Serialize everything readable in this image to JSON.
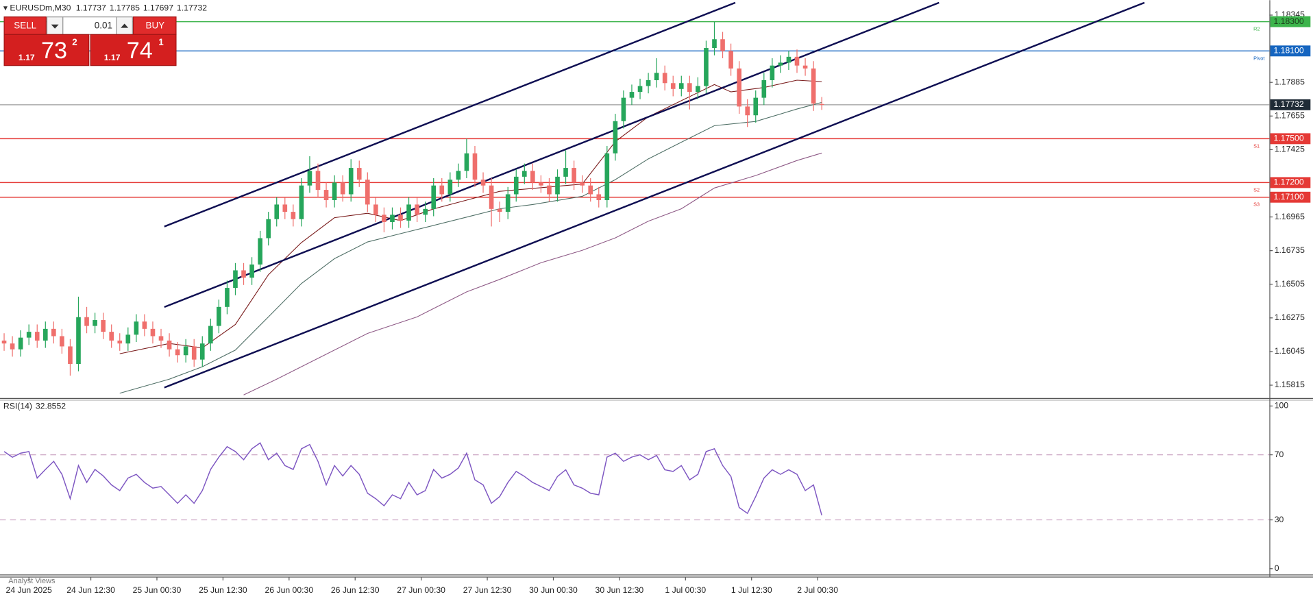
{
  "chart_data": {
    "type": "candlestick",
    "symbol": "EURUSDm,M30",
    "up_color": "#26a65b",
    "down_color": "#ef6f6c",
    "xlim": [
      -0.5,
      153.2
    ],
    "xticks": [
      {
        "value": 3,
        "label": "24 Jun 2025"
      },
      {
        "value": 10.5,
        "label": "24 Jun 12:30"
      },
      {
        "value": 18.5,
        "label": "25 Jun 00:30"
      },
      {
        "value": 26.5,
        "label": "25 Jun 12:30"
      },
      {
        "value": 34.5,
        "label": "26 Jun 00:30"
      },
      {
        "value": 42.5,
        "label": "26 Jun 12:30"
      },
      {
        "value": 50.5,
        "label": "27 Jun 00:30"
      },
      {
        "value": 58.5,
        "label": "27 Jun 12:30"
      },
      {
        "value": 66.5,
        "label": "30 Jun 00:30"
      },
      {
        "value": 74.5,
        "label": "30 Jun 12:30"
      },
      {
        "value": 82.5,
        "label": "1 Jul 00:30"
      },
      {
        "value": 90.5,
        "label": "1 Jul 12:30"
      },
      {
        "value": 98.5,
        "label": "2 Jul 00:30"
      }
    ],
    "ylim": [
      1.1573,
      1.1843
    ],
    "yticks": [
      1.18345,
      1.17885,
      1.17655,
      1.17425,
      1.16965,
      1.16735,
      1.16505,
      1.16275,
      1.16045,
      1.15815
    ],
    "open": [
      1.1612,
      1.161,
      1.1606,
      1.1614,
      1.1618,
      1.1612,
      1.162,
      1.1615,
      1.1608,
      1.1596,
      1.1628,
      1.1622,
      1.1626,
      1.1618,
      1.1612,
      1.161,
      1.1616,
      1.1625,
      1.162,
      1.1615,
      1.1612,
      1.1606,
      1.1602,
      1.1608,
      1.1599,
      1.161,
      1.1622,
      1.1635,
      1.1648,
      1.166,
      1.1655,
      1.1664,
      1.1682,
      1.1695,
      1.1705,
      1.17,
      1.1695,
      1.1718,
      1.1728,
      1.1715,
      1.1708,
      1.172,
      1.1712,
      1.173,
      1.1722,
      1.1705,
      1.1698,
      1.1693,
      1.1698,
      1.1694,
      1.1705,
      1.1698,
      1.1702,
      1.1718,
      1.1712,
      1.1722,
      1.1728,
      1.174,
      1.1722,
      1.1718,
      1.1702,
      1.17,
      1.1712,
      1.1724,
      1.1728,
      1.172,
      1.1718,
      1.1712,
      1.1724,
      1.173,
      1.172,
      1.1718,
      1.1712,
      1.1708,
      1.174,
      1.1762,
      1.1778,
      1.1782,
      1.1786,
      1.179,
      1.1795,
      1.1788,
      1.1784,
      1.1788,
      1.1782,
      1.1786,
      1.1812,
      1.1818,
      1.181,
      1.1798,
      1.1772,
      1.1766,
      1.1778,
      1.179,
      1.18,
      1.1802,
      1.1806,
      1.18,
      1.1798,
      1.17737
    ],
    "high": [
      1.1617,
      1.1615,
      1.1619,
      1.1623,
      1.1623,
      1.1625,
      1.1625,
      1.162,
      1.1613,
      1.1642,
      1.1635,
      1.1631,
      1.1631,
      1.1623,
      1.1617,
      1.1621,
      1.163,
      1.163,
      1.1625,
      1.162,
      1.1617,
      1.1611,
      1.1613,
      1.1613,
      1.1615,
      1.1627,
      1.164,
      1.1653,
      1.1665,
      1.1665,
      1.1669,
      1.1687,
      1.17,
      1.171,
      1.171,
      1.1705,
      1.1723,
      1.1738,
      1.1733,
      1.172,
      1.1725,
      1.1725,
      1.1736,
      1.1735,
      1.1727,
      1.171,
      1.1703,
      1.1703,
      1.1703,
      1.171,
      1.171,
      1.1707,
      1.1723,
      1.1723,
      1.1727,
      1.1733,
      1.175,
      1.1745,
      1.1727,
      1.1723,
      1.1707,
      1.1717,
      1.1729,
      1.1733,
      1.1733,
      1.1725,
      1.1723,
      1.1729,
      1.1742,
      1.1735,
      1.1725,
      1.1723,
      1.1717,
      1.1745,
      1.1767,
      1.1783,
      1.1787,
      1.1791,
      1.1795,
      1.1805,
      1.18,
      1.1793,
      1.1793,
      1.1793,
      1.1792,
      1.1817,
      1.183,
      1.1823,
      1.1815,
      1.1803,
      1.1777,
      1.1783,
      1.1795,
      1.1805,
      1.1807,
      1.181,
      1.1811,
      1.1805,
      1.1803,
      1.17785
    ],
    "low": [
      1.1605,
      1.1601,
      1.1601,
      1.1609,
      1.1607,
      1.1607,
      1.161,
      1.1603,
      1.1588,
      1.1591,
      1.1617,
      1.1617,
      1.1613,
      1.1607,
      1.1605,
      1.1605,
      1.1611,
      1.1615,
      1.161,
      1.1607,
      1.1601,
      1.1597,
      1.1597,
      1.1594,
      1.1594,
      1.1605,
      1.1617,
      1.163,
      1.1643,
      1.165,
      1.165,
      1.1659,
      1.1677,
      1.169,
      1.1695,
      1.169,
      1.169,
      1.1713,
      1.171,
      1.1703,
      1.1703,
      1.1707,
      1.1707,
      1.1717,
      1.17,
      1.1693,
      1.1686,
      1.1688,
      1.1689,
      1.1689,
      1.1693,
      1.1693,
      1.1697,
      1.1707,
      1.1707,
      1.1717,
      1.1723,
      1.1717,
      1.1713,
      1.169,
      1.1693,
      1.1695,
      1.1707,
      1.1719,
      1.1715,
      1.1713,
      1.1707,
      1.1707,
      1.1719,
      1.1715,
      1.1713,
      1.1707,
      1.1703,
      1.1703,
      1.1735,
      1.1757,
      1.1773,
      1.1777,
      1.1781,
      1.1785,
      1.1783,
      1.1779,
      1.1779,
      1.177,
      1.1777,
      1.1781,
      1.1807,
      1.1805,
      1.1793,
      1.1767,
      1.1758,
      1.1761,
      1.1773,
      1.1785,
      1.1795,
      1.1797,
      1.1795,
      1.1793,
      1.1769,
      1.17697
    ],
    "close": [
      1.161,
      1.1606,
      1.1614,
      1.1618,
      1.1612,
      1.162,
      1.1615,
      1.1608,
      1.1596,
      1.1628,
      1.1622,
      1.1626,
      1.1618,
      1.1612,
      1.161,
      1.1616,
      1.1625,
      1.162,
      1.1615,
      1.1612,
      1.1606,
      1.1602,
      1.1608,
      1.1599,
      1.161,
      1.1622,
      1.1635,
      1.1648,
      1.166,
      1.1655,
      1.1664,
      1.1682,
      1.1695,
      1.1705,
      1.17,
      1.1695,
      1.1718,
      1.1728,
      1.1715,
      1.1708,
      1.172,
      1.1712,
      1.173,
      1.1722,
      1.1705,
      1.1698,
      1.1693,
      1.1698,
      1.1694,
      1.1705,
      1.1698,
      1.1702,
      1.1718,
      1.1712,
      1.1722,
      1.1728,
      1.174,
      1.1722,
      1.1718,
      1.1702,
      1.17,
      1.1712,
      1.1724,
      1.1728,
      1.172,
      1.1718,
      1.1712,
      1.1724,
      1.173,
      1.172,
      1.1718,
      1.1712,
      1.1708,
      1.174,
      1.1762,
      1.1778,
      1.1782,
      1.1786,
      1.179,
      1.1795,
      1.1788,
      1.1784,
      1.1788,
      1.1782,
      1.1786,
      1.1812,
      1.1818,
      1.181,
      1.1798,
      1.1772,
      1.1766,
      1.1778,
      1.179,
      1.18,
      1.1802,
      1.1806,
      1.18,
      1.1798,
      1.1774,
      1.17732
    ],
    "moving_averages": [
      {
        "color": "#7a1c1c",
        "x": [
          14,
          20,
          24,
          28,
          32,
          36,
          40,
          44,
          48,
          52,
          56,
          60,
          64,
          70,
          74,
          78,
          82,
          86,
          88,
          92,
          96,
          99
        ],
        "values": [
          1.1603,
          1.161,
          1.1607,
          1.1623,
          1.1657,
          1.1679,
          1.1696,
          1.1699,
          1.1694,
          1.1702,
          1.1708,
          1.1714,
          1.1716,
          1.1719,
          1.1748,
          1.1765,
          1.1776,
          1.1787,
          1.1782,
          1.1785,
          1.179,
          1.1789
        ]
      },
      {
        "color": "#4f6f66",
        "x": [
          14,
          20,
          24,
          28,
          32,
          36,
          40,
          44,
          48,
          52,
          56,
          60,
          64,
          70,
          74,
          78,
          82,
          86,
          91,
          96,
          99
        ],
        "values": [
          1.1576,
          1.15856,
          1.15941,
          1.16055,
          1.16282,
          1.1651,
          1.1668,
          1.16794,
          1.16851,
          1.16907,
          1.16964,
          1.17021,
          1.1705,
          1.17106,
          1.1722,
          1.17362,
          1.17476,
          1.17589,
          1.17618,
          1.17703,
          1.17748
        ]
      },
      {
        "color": "#8e5a86",
        "x": [
          29,
          33,
          40,
          44,
          50,
          56,
          60,
          65,
          70,
          74,
          78,
          82,
          86,
          91,
          96,
          99
        ],
        "values": [
          1.15748,
          1.15856,
          1.16055,
          1.16169,
          1.16282,
          1.16453,
          1.16538,
          1.16652,
          1.16737,
          1.16822,
          1.16936,
          1.17021,
          1.17163,
          1.17248,
          1.17351,
          1.17402
        ]
      }
    ],
    "levels": [
      {
        "name": "R2",
        "value": 1.183,
        "value_label": "1.18300",
        "color": "#3cb44b",
        "text_color": "#1b3d1b"
      },
      {
        "name": "Pivot",
        "value": 1.181,
        "value_label": "1.18100",
        "color": "#1565c0",
        "text_color": "#ffffff"
      },
      {
        "name": "S1",
        "value": 1.175,
        "value_label": "1.17500",
        "color": "#e53935",
        "text_color": "#ffffff"
      },
      {
        "name": "S2",
        "value": 1.172,
        "value_label": "1.17200",
        "color": "#e53935",
        "text_color": "#ffffff"
      },
      {
        "name": "S3",
        "value": 1.171,
        "value_label": "1.17100",
        "color": "#e53935",
        "text_color": "#ffffff"
      }
    ],
    "rsi": {
      "name": "RSI(14)",
      "color": "#7e57c2",
      "level_color": "#c9a0c0",
      "ylim": [
        -3.6,
        103.1
      ],
      "yticks": [
        100,
        70,
        30,
        0
      ],
      "levels": [
        70,
        30
      ],
      "values": [
        72,
        68.5,
        71,
        72,
        55.7,
        61,
        66,
        58,
        43,
        63.4,
        53,
        61,
        57,
        51.5,
        48,
        55.7,
        58,
        53,
        49.5,
        50.5,
        45.4,
        40.2,
        45.4,
        40.2,
        48,
        61,
        68.6,
        75,
        72,
        67,
        73.7,
        77.3,
        67,
        71,
        63.4,
        61,
        73.7,
        76.3,
        66,
        51.5,
        63.4,
        57,
        63.4,
        58,
        46.4,
        43,
        38.7,
        45.4,
        43,
        53,
        45.4,
        48,
        61,
        55.7,
        58,
        61.9,
        71,
        54.6,
        51.5,
        40.2,
        44.3,
        53,
        59.8,
        56.7,
        53,
        50.5,
        48,
        56.7,
        60.8,
        51.5,
        49.5,
        46.4,
        45.4,
        68.6,
        71,
        66,
        68.6,
        70,
        67,
        69.6,
        60.8,
        59.8,
        63.4,
        54.6,
        58,
        72,
        73.7,
        63.4,
        56.7,
        37.6,
        34,
        44.3,
        55.7,
        60.8,
        58,
        60.8,
        58,
        48,
        51.5,
        32.8552
      ]
    }
  },
  "trade_panel": {
    "sell": "SELL",
    "buy": "BUY",
    "lot": "0.01",
    "bid": {
      "prefix": "1.17",
      "big": "73",
      "sup": "2"
    },
    "ask": {
      "prefix": "1.17",
      "big": "74",
      "sup": "1"
    }
  },
  "watermark": "Analyst Views"
}
